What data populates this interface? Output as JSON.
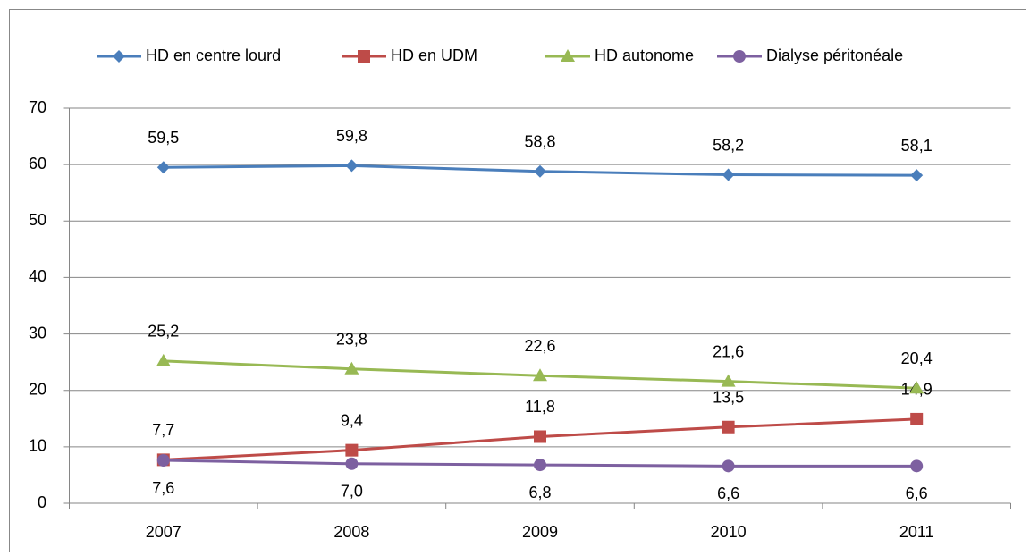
{
  "chart_data": {
    "type": "line",
    "categories": [
      "2007",
      "2008",
      "2009",
      "2010",
      "2011"
    ],
    "series": [
      {
        "name": "HD en centre lourd",
        "color": "#4a7ebb",
        "marker": "diamond",
        "values": [
          59.5,
          59.8,
          58.8,
          58.2,
          58.1
        ],
        "value_labels": [
          "59,5",
          "59,8",
          "58,8",
          "58,2",
          "58,1"
        ]
      },
      {
        "name": "HD en UDM",
        "color": "#be4b48",
        "marker": "square",
        "values": [
          7.7,
          9.4,
          11.8,
          13.5,
          14.9
        ],
        "value_labels": [
          "7,7",
          "9,4",
          "11,8",
          "13,5",
          "14,9"
        ]
      },
      {
        "name": "HD autonome",
        "color": "#98b954",
        "marker": "triangle",
        "values": [
          25.2,
          23.8,
          22.6,
          21.6,
          20.4
        ],
        "value_labels": [
          "25,2",
          "23,8",
          "22,6",
          "21,6",
          "20,4"
        ]
      },
      {
        "name": "Dialyse péritonéale",
        "color": "#7d60a0",
        "marker": "circle",
        "values": [
          7.6,
          7.0,
          6.8,
          6.6,
          6.6
        ],
        "value_labels": [
          "7,6",
          "7,0",
          "6,8",
          "6,6",
          "6,6"
        ]
      }
    ],
    "ylim": [
      0,
      70
    ],
    "yticks": [
      0,
      10,
      20,
      30,
      40,
      50,
      60,
      70
    ],
    "grid": true,
    "legend": "top"
  }
}
